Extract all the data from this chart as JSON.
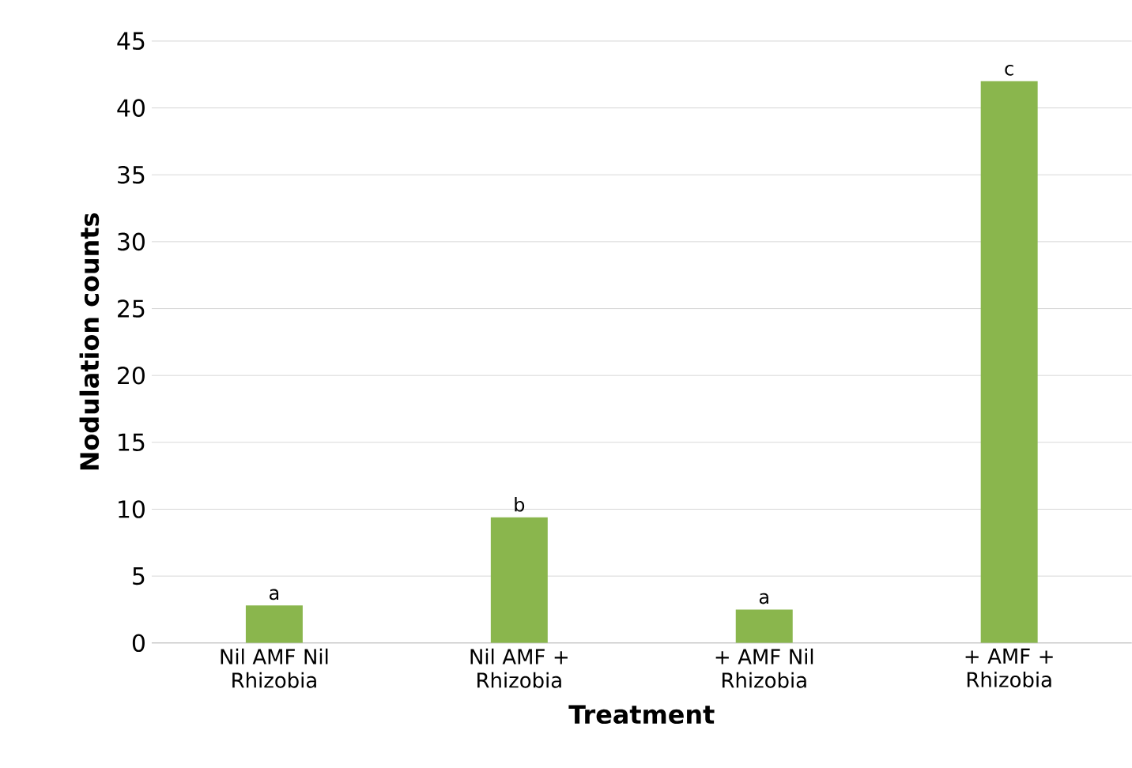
{
  "chart_data": {
    "type": "bar",
    "xlabel": "Treatment",
    "ylabel": "Nodulation counts",
    "categories": [
      "Nil AMF Nil Rhizobia",
      "Nil AMF + Rhizobia",
      "+ AMF Nil Rhizobia",
      "+ AMF + Rhizobia"
    ],
    "values": [
      2.8,
      9.4,
      2.5,
      42
    ],
    "color": "#8ab64d",
    "ylim": [
      0,
      45
    ],
    "yticks": [
      0,
      5,
      10,
      15,
      20,
      25,
      30,
      35,
      40,
      45
    ],
    "grid": "y",
    "annotations": [
      {
        "text": "a",
        "x": "Nil AMF Nil Rhizobia",
        "y": 2.8
      },
      {
        "text": "b",
        "x": "Nil AMF + Rhizobia",
        "y": 9.4
      },
      {
        "text": "a",
        "x": "+ AMF Nil Rhizobia",
        "y": 2.5
      },
      {
        "text": "c",
        "x": "+ AMF + Rhizobia",
        "y": 42
      }
    ]
  }
}
